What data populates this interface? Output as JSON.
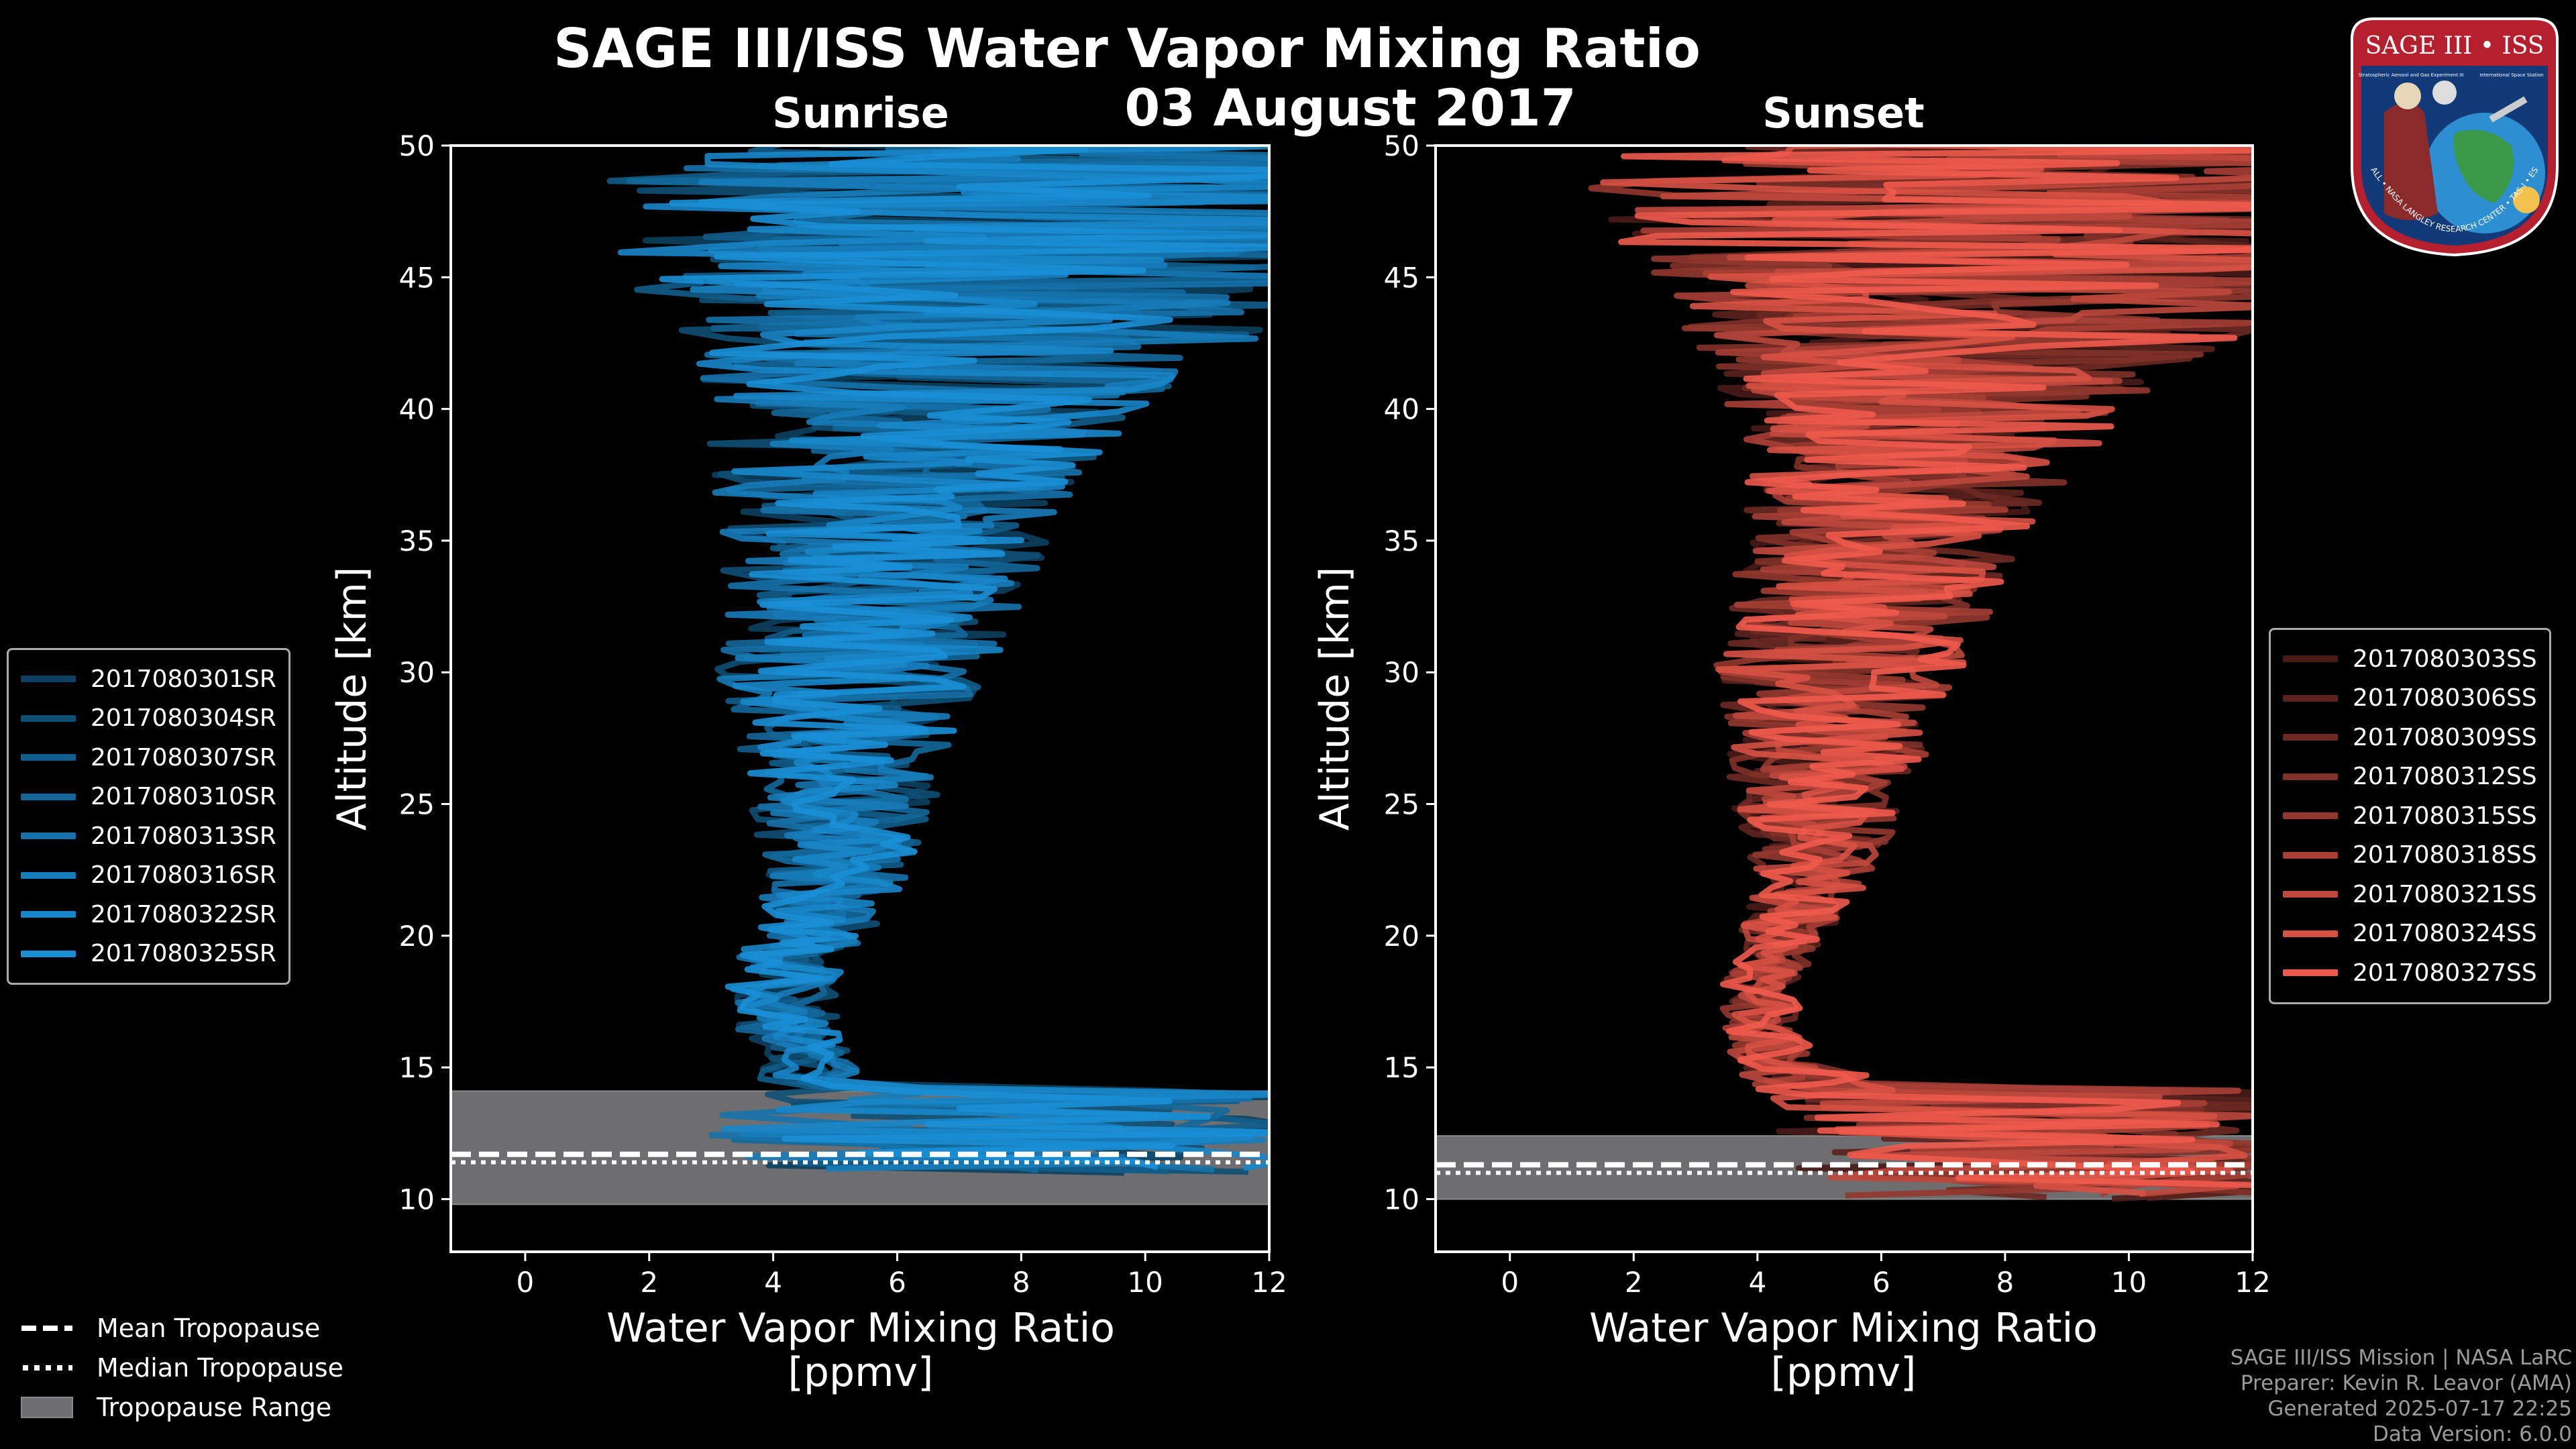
{
  "title": "SAGE III/ISS Water Vapor Mixing Ratio",
  "date": "03 August 2017",
  "badge": {
    "text": "SAGE III • ISS",
    "small1": "Stratospheric Aerosol and Gas Experiment III",
    "small2": "International Space Station",
    "ring": "BALL • NASA LANGLEY RESEARCH CENTER • TAS-I • ESA"
  },
  "bottom_legend": {
    "mean": "Mean Tropopause",
    "median": "Median Tropopause",
    "range": "Tropopause Range"
  },
  "credits": [
    "SAGE III/ISS Mission | NASA LaRC",
    "Preparer: Kevin R. Leavor (AMA)",
    "Generated 2025-07-17 22:25",
    "Data Version: 6.0.0"
  ],
  "colors": {
    "sunrise": "#1a8fd6",
    "sunset": "#ef5a4c",
    "tropopause_band": "#6e6e70",
    "background": "#000000"
  },
  "chart_data": [
    {
      "type": "line",
      "panel": "Sunrise",
      "title": "Sunrise",
      "xlabel": "Water Vapor Mixing Ratio\n[ppmv]",
      "xlabel_lines": [
        "Water Vapor Mixing Ratio",
        "[ppmv]"
      ],
      "ylabel": "Altitude [km]",
      "xlim": [
        -1.2,
        12
      ],
      "ylim": [
        8,
        50
      ],
      "xticks": [
        0,
        2,
        4,
        6,
        8,
        10,
        12
      ],
      "yticks": [
        10,
        15,
        20,
        25,
        30,
        35,
        40,
        45,
        50
      ],
      "tropopause": {
        "mean": 11.7,
        "median": 11.6,
        "range": [
          9.8,
          14.1
        ]
      },
      "series": [
        {
          "name": "2017080301SR",
          "shade": 0.45
        },
        {
          "name": "2017080304SR",
          "shade": 0.55
        },
        {
          "name": "2017080307SR",
          "shade": 0.65
        },
        {
          "name": "2017080310SR",
          "shade": 0.72
        },
        {
          "name": "2017080313SR",
          "shade": 0.8
        },
        {
          "name": "2017080316SR",
          "shade": 0.87
        },
        {
          "name": "2017080322SR",
          "shade": 0.94
        },
        {
          "name": "2017080325SR",
          "shade": 1.0
        }
      ],
      "profile_envelope": {
        "altitude_km": [
          10.5,
          12,
          13,
          14,
          15,
          16,
          18,
          20,
          22,
          25,
          28,
          30,
          32,
          35,
          38,
          40,
          42,
          45,
          48,
          50
        ],
        "center_ppmv": [
          8.0,
          7.5,
          7.0,
          5.2,
          4.6,
          4.3,
          4.1,
          4.6,
          5.0,
          5.2,
          5.2,
          5.3,
          5.5,
          5.8,
          6.0,
          6.5,
          7.0,
          7.5,
          8.0,
          8.5
        ],
        "spread_ppmv": [
          4.0,
          4.5,
          4.5,
          1.5,
          0.8,
          0.8,
          0.9,
          1.0,
          1.1,
          1.6,
          1.9,
          2.2,
          2.4,
          2.7,
          3.1,
          3.6,
          4.4,
          6.0,
          7.0,
          7.0
        ]
      }
    },
    {
      "type": "line",
      "panel": "Sunset",
      "title": "Sunset",
      "xlabel": "Water Vapor Mixing Ratio\n[ppmv]",
      "xlabel_lines": [
        "Water Vapor Mixing Ratio",
        "[ppmv]"
      ],
      "ylabel": "Altitude [km]",
      "xlim": [
        -1.2,
        12
      ],
      "ylim": [
        8,
        50
      ],
      "xticks": [
        0,
        2,
        4,
        6,
        8,
        10,
        12
      ],
      "yticks": [
        10,
        15,
        20,
        25,
        30,
        35,
        40,
        45,
        50
      ],
      "tropopause": {
        "mean": 11.3,
        "median": 11.2,
        "range": [
          10.0,
          12.4
        ]
      },
      "series": [
        {
          "name": "2017080303SS",
          "shade": 0.3
        },
        {
          "name": "2017080306SS",
          "shade": 0.38
        },
        {
          "name": "2017080309SS",
          "shade": 0.46
        },
        {
          "name": "2017080312SS",
          "shade": 0.54
        },
        {
          "name": "2017080315SS",
          "shade": 0.62
        },
        {
          "name": "2017080318SS",
          "shade": 0.7
        },
        {
          "name": "2017080321SS",
          "shade": 0.8
        },
        {
          "name": "2017080324SS",
          "shade": 0.9
        },
        {
          "name": "2017080327SS",
          "shade": 1.0
        }
      ],
      "profile_envelope": {
        "altitude_km": [
          10.0,
          11.5,
          12.5,
          13.5,
          15,
          16,
          18,
          20,
          22,
          25,
          28,
          30,
          32,
          35,
          38,
          40,
          42,
          45,
          48,
          50
        ],
        "center_ppmv": [
          9.0,
          8.5,
          8.0,
          6.0,
          4.4,
          4.2,
          4.0,
          4.4,
          4.9,
          5.0,
          5.2,
          5.3,
          5.6,
          6.0,
          6.5,
          6.8,
          7.2,
          7.8,
          8.2,
          8.8
        ],
        "spread_ppmv": [
          4.0,
          4.0,
          4.0,
          2.0,
          0.8,
          0.7,
          0.6,
          0.7,
          0.9,
          1.4,
          1.8,
          2.0,
          2.1,
          2.3,
          2.8,
          3.3,
          4.2,
          5.8,
          7.0,
          7.0
        ]
      }
    }
  ]
}
